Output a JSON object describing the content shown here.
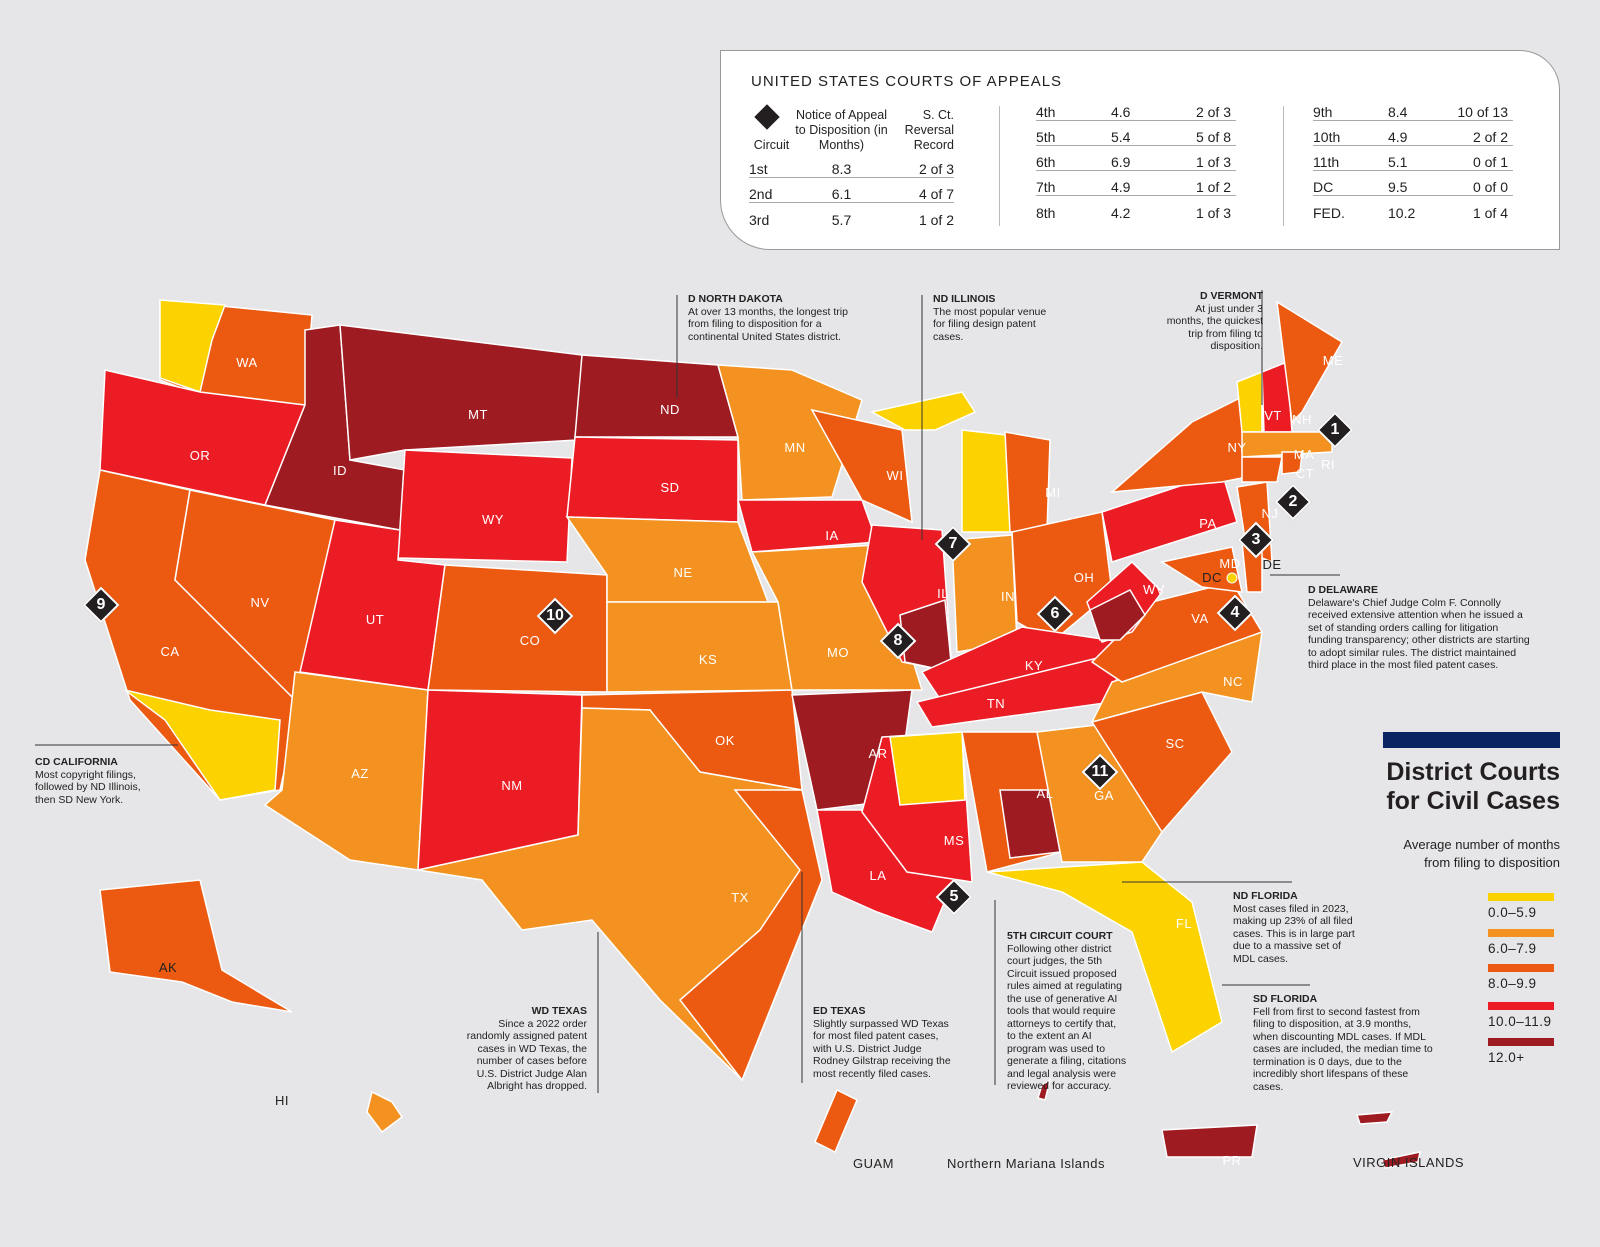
{
  "appeals": {
    "title": "UNITED STATES COURTS OF APPEALS",
    "headers": {
      "circuit": "Circuit",
      "notice": "Notice of Appeal to Disposition (in Months)",
      "reversal": "S. Ct. Reversal Record"
    },
    "rows": [
      {
        "circuit": "1st",
        "months": "8.3",
        "record": "2 of 3"
      },
      {
        "circuit": "2nd",
        "months": "6.1",
        "record": "4 of 7"
      },
      {
        "circuit": "3rd",
        "months": "5.7",
        "record": "1 of 2"
      },
      {
        "circuit": "4th",
        "months": "4.6",
        "record": "2 of 3"
      },
      {
        "circuit": "5th",
        "months": "5.4",
        "record": "5 of 8"
      },
      {
        "circuit": "6th",
        "months": "6.9",
        "record": "1 of 3"
      },
      {
        "circuit": "7th",
        "months": "4.9",
        "record": "1 of 2"
      },
      {
        "circuit": "8th",
        "months": "4.2",
        "record": "1 of 3"
      },
      {
        "circuit": "9th",
        "months": "8.4",
        "record": "10 of 13"
      },
      {
        "circuit": "10th",
        "months": "4.9",
        "record": "2 of 2"
      },
      {
        "circuit": "11th",
        "months": "5.1",
        "record": "0 of 1"
      },
      {
        "circuit": "DC",
        "months": "9.5",
        "record": "0 of 0"
      },
      {
        "circuit": "FED.",
        "months": "10.2",
        "record": "1 of 4"
      }
    ]
  },
  "title": {
    "line1": "District Courts",
    "line2": "for Civil Cases",
    "subtitle1": "Average number of months",
    "subtitle2": "from filing to disposition"
  },
  "legend": [
    {
      "label": "0.0–5.9",
      "color": "#fcd200"
    },
    {
      "label": "6.0–7.9",
      "color": "#f39221"
    },
    {
      "label": "8.0–9.9",
      "color": "#ec5a11"
    },
    {
      "label": "10.0–11.9",
      "color": "#ec1c24"
    },
    {
      "label": "12.0+",
      "color": "#9e1b22"
    }
  ],
  "states": {
    "WA": "WA",
    "OR": "OR",
    "CA": "CA",
    "NV": "NV",
    "ID": "ID",
    "MT": "MT",
    "WY": "WY",
    "UT": "UT",
    "CO": "CO",
    "AZ": "AZ",
    "NM": "NM",
    "ND": "ND",
    "SD": "SD",
    "NE": "NE",
    "KS": "KS",
    "OK": "OK",
    "TX": "TX",
    "MN": "MN",
    "IA": "IA",
    "MO": "MO",
    "AR": "AR",
    "LA": "LA",
    "WI": "WI",
    "IL": "IL",
    "MI": "MI",
    "IN": "IN",
    "OH": "OH",
    "KY": "KY",
    "TN": "TN",
    "MS": "MS",
    "AL": "AL",
    "GA": "GA",
    "FL": "FL",
    "SC": "SC",
    "NC": "NC",
    "VA": "VA",
    "WV": "WV",
    "PA": "PA",
    "NY": "NY",
    "VT": "VT",
    "NH": "NH",
    "ME": "ME",
    "MA": "MA",
    "CT": "CT",
    "RI": "RI",
    "NJ": "NJ",
    "DE": "DE",
    "MD": "MD",
    "DC": "DC",
    "AK": "AK",
    "HI": "HI",
    "PR": "PR"
  },
  "islands": {
    "guam": "GUAM",
    "nmi": "Northern Mariana Islands",
    "vi": "VIRGIN ISLANDS"
  },
  "circuits": [
    "1",
    "2",
    "3",
    "4",
    "5",
    "6",
    "7",
    "8",
    "9",
    "10",
    "11"
  ],
  "notes": [
    {
      "title": "D NORTH DAKOTA",
      "text": "At over 13 months, the longest trip from filing to disposition for a continental United States district."
    },
    {
      "title": "ND ILLINOIS",
      "text": "The most popular venue for filing design patent cases."
    },
    {
      "title": "D VERMONT",
      "text": "At just under 3 months, the quickest trip from filing to disposition."
    },
    {
      "title": "D DELAWARE",
      "text": "Delaware's Chief Judge Colm F. Connolly received extensive attention when he issued a set of standing orders calling for litigation funding transparency; other districts are starting to adopt similar rules. The district maintained third place in the most filed patent cases."
    },
    {
      "title": "CD CALIFORNIA",
      "text": "Most copyright filings, followed by ND Illinois, then SD New York."
    },
    {
      "title": "ND FLORIDA",
      "text": "Most cases filed in 2023, making up 23% of all filed cases. This is in large part due to a massive set of MDL cases."
    },
    {
      "title": "SD FLORIDA",
      "text": "Fell from first to second fastest from filing to disposition, at 3.9 months, when discounting MDL cases. If MDL cases are included, the median time to termination is 0 days, due to the incredibly short lifespans of these cases."
    },
    {
      "title": "5TH CIRCUIT COURT",
      "text": "Following other district court judges, the 5th Circuit issued proposed rules aimed at regulating the use of generative AI tools that would require attorneys to certify that, to the extent an AI program was used to generate a filing, citations and legal analysis were reviewed for accuracy."
    },
    {
      "title": "WD TEXAS",
      "text": "Since a 2022 order randomly assigned patent cases in WD Texas, the number of cases before U.S. District Judge Alan Albright has dropped."
    },
    {
      "title": "ED TEXAS",
      "text": "Slightly surpassed WD Texas for most filed patent cases, with U.S. District Judge Rodney Gilstrap receiving the most recently filed cases."
    }
  ]
}
